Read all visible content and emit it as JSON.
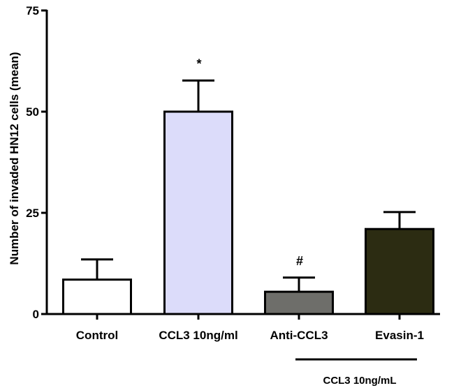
{
  "chart_data": {
    "type": "bar",
    "title": "",
    "xlabel": "",
    "ylabel": "Number of invaded HN12 cells (mean)",
    "ylim": [
      0,
      75
    ],
    "yticks": [
      0,
      25,
      50,
      75
    ],
    "categories": [
      "Control",
      "CCL3 10ng/ml",
      "Anti-CCL3",
      "Evasin-1"
    ],
    "values": [
      8.5,
      50,
      5.5,
      21
    ],
    "errors": [
      5,
      7.7,
      3.5,
      4.2
    ],
    "bar_colors": [
      "#ffffff",
      "#dcdcfa",
      "#6e6e6a",
      "#2c2c12"
    ],
    "annotations": [
      "",
      "*",
      "#",
      ""
    ],
    "grid": false,
    "group_bracket": {
      "label": "CCL3 10ng/mL",
      "from_category": 2,
      "to_category": 3
    }
  }
}
